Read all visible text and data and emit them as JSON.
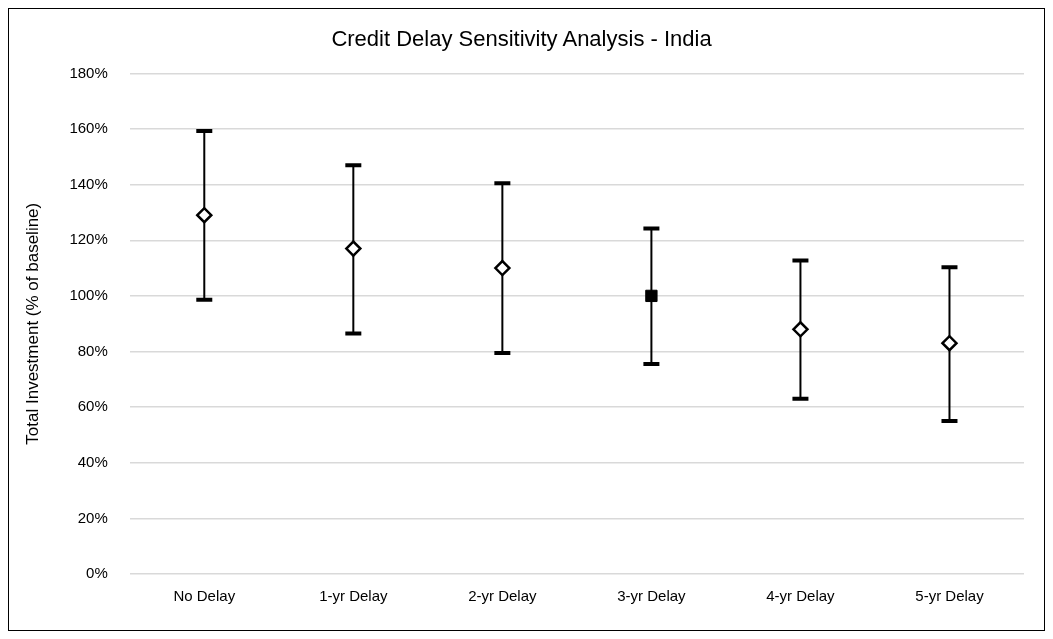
{
  "chart_data": {
    "type": "scatter",
    "title": "Credit Delay Sensitivity Analysis - India",
    "ylabel": "Total Investment (% of baseline)",
    "categories": [
      "No Delay",
      "1-yr Delay",
      "2-yr Delay",
      "3-yr Delay",
      "4-yr Delay",
      "5-yr Delay"
    ],
    "series": [
      {
        "marker": "diamond",
        "color": "#000000",
        "values": [
          129,
          117,
          110,
          null,
          88,
          83
        ],
        "errors": [
          [
            98.6,
            159.3
          ],
          [
            86.5,
            147
          ],
          [
            79.5,
            140.5
          ],
          null,
          [
            63,
            112.7
          ],
          [
            55,
            110.3
          ]
        ]
      },
      {
        "marker": "square",
        "color": "#000000",
        "values": [
          null,
          null,
          null,
          100,
          null,
          null
        ],
        "errors": [
          null,
          null,
          null,
          [
            75.5,
            124.2
          ],
          null,
          null
        ]
      }
    ],
    "ylim": [
      0,
      180
    ],
    "yticks": [
      {
        "value": 0,
        "label": "0%"
      },
      {
        "value": 20,
        "label": "20%"
      },
      {
        "value": 40,
        "label": "40%"
      },
      {
        "value": 60,
        "label": "60%"
      },
      {
        "value": 80,
        "label": "80%"
      },
      {
        "value": 100,
        "label": "100%"
      },
      {
        "value": 120,
        "label": "120%"
      },
      {
        "value": 140,
        "label": "140%"
      },
      {
        "value": 160,
        "label": "160%"
      },
      {
        "value": 180,
        "label": "180%"
      }
    ],
    "grid": "y",
    "legend": false
  }
}
